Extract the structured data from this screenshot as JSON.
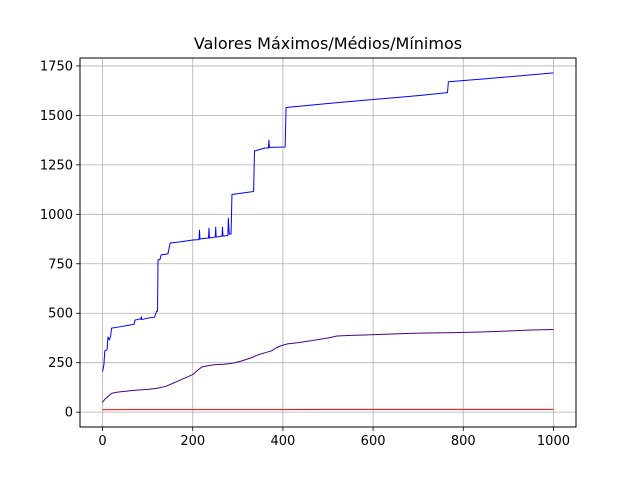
{
  "chart_data": {
    "type": "line",
    "title": "Valores Máximos/Médios/Mínimos",
    "xlabel": "",
    "ylabel": "",
    "xlim": [
      -50,
      1050
    ],
    "ylim": [
      -75,
      1790
    ],
    "xticks": [
      0,
      200,
      400,
      600,
      800,
      1000
    ],
    "yticks": [
      0,
      250,
      500,
      750,
      1000,
      1250,
      1500,
      1750
    ],
    "grid": true,
    "legend": "none",
    "series": [
      {
        "color": "#0000ff",
        "points": [
          [
            0,
            205
          ],
          [
            3,
            240
          ],
          [
            5,
            310
          ],
          [
            10,
            315
          ],
          [
            12,
            380
          ],
          [
            15,
            365
          ],
          [
            18,
            385
          ],
          [
            20,
            425
          ],
          [
            40,
            432
          ],
          [
            60,
            440
          ],
          [
            70,
            445
          ],
          [
            72,
            465
          ],
          [
            80,
            470
          ],
          [
            85,
            470
          ],
          [
            86,
            482
          ],
          [
            87,
            468
          ],
          [
            100,
            475
          ],
          [
            115,
            480
          ],
          [
            120,
            510
          ],
          [
            122,
            510
          ],
          [
            123,
            770
          ],
          [
            127,
            770
          ],
          [
            130,
            795
          ],
          [
            145,
            800
          ],
          [
            150,
            855
          ],
          [
            170,
            860
          ],
          [
            200,
            870
          ],
          [
            214,
            872
          ],
          [
            215,
            920
          ],
          [
            216,
            875
          ],
          [
            235,
            880
          ],
          [
            236,
            930
          ],
          [
            237,
            880
          ],
          [
            250,
            885
          ],
          [
            251,
            935
          ],
          [
            252,
            885
          ],
          [
            265,
            890
          ],
          [
            266,
            935
          ],
          [
            267,
            890
          ],
          [
            278,
            893
          ],
          [
            279,
            980
          ],
          [
            281,
            900
          ],
          [
            285,
            900
          ],
          [
            287,
            1100
          ],
          [
            335,
            1115
          ],
          [
            337,
            1320
          ],
          [
            360,
            1335
          ],
          [
            368,
            1335
          ],
          [
            369,
            1375
          ],
          [
            370,
            1338
          ],
          [
            405,
            1340
          ],
          [
            407,
            1540
          ],
          [
            500,
            1560
          ],
          [
            600,
            1580
          ],
          [
            700,
            1600
          ],
          [
            765,
            1615
          ],
          [
            767,
            1670
          ],
          [
            850,
            1685
          ],
          [
            950,
            1705
          ],
          [
            1000,
            1715
          ]
        ]
      },
      {
        "color": "#4b0082",
        "points": [
          [
            0,
            50
          ],
          [
            5,
            65
          ],
          [
            10,
            75
          ],
          [
            15,
            85
          ],
          [
            20,
            95
          ],
          [
            30,
            100
          ],
          [
            40,
            103
          ],
          [
            60,
            108
          ],
          [
            80,
            112
          ],
          [
            100,
            115
          ],
          [
            120,
            120
          ],
          [
            140,
            130
          ],
          [
            160,
            150
          ],
          [
            180,
            170
          ],
          [
            200,
            190
          ],
          [
            210,
            210
          ],
          [
            220,
            228
          ],
          [
            235,
            235
          ],
          [
            250,
            240
          ],
          [
            270,
            242
          ],
          [
            290,
            248
          ],
          [
            310,
            260
          ],
          [
            330,
            275
          ],
          [
            345,
            290
          ],
          [
            360,
            300
          ],
          [
            375,
            310
          ],
          [
            385,
            325
          ],
          [
            395,
            335
          ],
          [
            410,
            345
          ],
          [
            430,
            350
          ],
          [
            460,
            360
          ],
          [
            480,
            368
          ],
          [
            500,
            375
          ],
          [
            520,
            385
          ],
          [
            550,
            388
          ],
          [
            580,
            390
          ],
          [
            620,
            393
          ],
          [
            680,
            398
          ],
          [
            720,
            400
          ],
          [
            780,
            402
          ],
          [
            840,
            405
          ],
          [
            900,
            410
          ],
          [
            950,
            415
          ],
          [
            1000,
            418
          ]
        ]
      },
      {
        "color": "#ff0000",
        "points": [
          [
            0,
            12
          ],
          [
            100,
            13
          ],
          [
            200,
            13
          ],
          [
            300,
            13
          ],
          [
            400,
            13
          ],
          [
            500,
            14
          ],
          [
            600,
            14
          ],
          [
            700,
            14
          ],
          [
            800,
            14
          ],
          [
            900,
            14
          ],
          [
            1000,
            14
          ]
        ]
      }
    ]
  }
}
